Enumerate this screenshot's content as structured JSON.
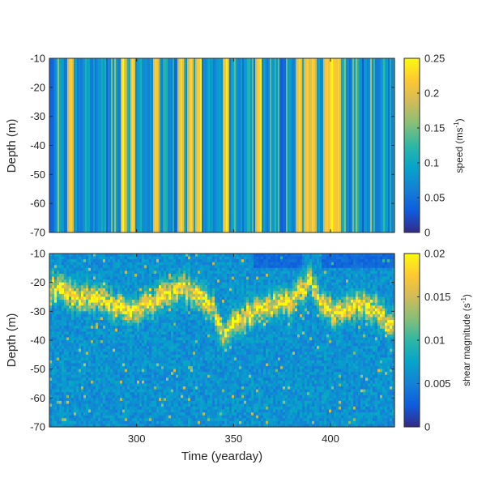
{
  "chart_data": [
    {
      "type": "heatmap",
      "title": "",
      "xlabel": "",
      "ylabel": "Depth (m)",
      "xlim": [
        255,
        433
      ],
      "ylim": [
        -70,
        -10
      ],
      "y_ticks": [
        "-10",
        "-20",
        "-30",
        "-40",
        "-50",
        "-60",
        "-70"
      ],
      "y_tick_values": [
        -10,
        -20,
        -30,
        -40,
        -50,
        -60,
        -70
      ],
      "x_ticks": [],
      "colorbar": {
        "label": "speed (ms",
        "label_sup": "-1",
        "label_end": ")",
        "range": [
          0,
          0.25
        ],
        "ticks": [
          "0.25",
          "0.2",
          "0.15",
          "0.1",
          "0.05",
          "0"
        ],
        "tick_values": [
          0.25,
          0.2,
          0.15,
          0.1,
          0.05,
          0
        ]
      },
      "colormap": "parula",
      "pattern": "vertical stripes: speed varies strongly in time, nearly uniform with depth",
      "high_value_times": [
        266,
        293,
        298,
        310,
        323,
        328,
        332,
        346,
        363,
        384,
        388,
        391,
        398,
        400,
        402,
        404
      ]
    },
    {
      "type": "heatmap",
      "title": "",
      "xlabel": "Time (yearday)",
      "ylabel": "Depth (m)",
      "xlim": [
        255,
        433
      ],
      "ylim": [
        -70,
        -10
      ],
      "x_ticks": [
        "300",
        "350",
        "400"
      ],
      "x_tick_values": [
        300,
        350,
        400
      ],
      "y_ticks": [
        "-10",
        "-20",
        "-30",
        "-40",
        "-50",
        "-60",
        "-70"
      ],
      "y_tick_values": [
        -10,
        -20,
        -30,
        -40,
        -50,
        -60,
        -70
      ],
      "colorbar": {
        "label": "shear magnitude (s",
        "label_sup": "-1",
        "label_end": ")",
        "range": [
          0,
          0.02
        ],
        "ticks": [
          "0.02",
          "0.015",
          "0.01",
          "0.005",
          "0"
        ],
        "tick_values": [
          0.02,
          0.015,
          0.01,
          0.005,
          0
        ]
      },
      "colormap": "parula",
      "pattern": "high shear band tracking the base of the mixed layer",
      "high_shear_band": {
        "time": [
          255,
          270,
          285,
          295,
          305,
          315,
          325,
          335,
          340,
          345,
          350,
          360,
          370,
          380,
          385,
          390,
          395,
          405,
          415,
          425,
          433
        ],
        "depth": [
          -22,
          -25,
          -27,
          -30,
          -28,
          -24,
          -22,
          -26,
          -30,
          -38,
          -34,
          -30,
          -28,
          -27,
          -22,
          -20,
          -28,
          -31,
          -27,
          -30,
          -36
        ]
      }
    }
  ]
}
